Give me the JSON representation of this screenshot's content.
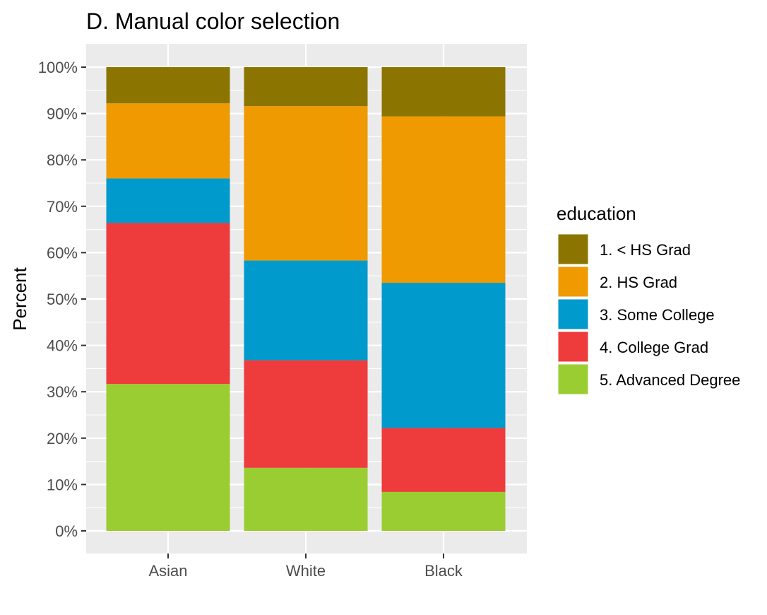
{
  "chart_data": {
    "type": "bar",
    "stacked": true,
    "title": "D. Manual color selection",
    "xlabel": "",
    "ylabel": "Percent",
    "categories": [
      "Asian",
      "White",
      "Black"
    ],
    "ylim": [
      0,
      100
    ],
    "y_ticks": [
      0,
      10,
      20,
      30,
      40,
      50,
      60,
      70,
      80,
      90,
      100
    ],
    "y_tick_labels": [
      "0%",
      "10%",
      "20%",
      "30%",
      "40%",
      "50%",
      "60%",
      "70%",
      "80%",
      "90%",
      "100%"
    ],
    "grid": true,
    "legend": {
      "title": "education",
      "position": "right"
    },
    "series": [
      {
        "name": "1. < HS Grad",
        "color": "#8B7500",
        "values": [
          7.8,
          8.4,
          10.6
        ]
      },
      {
        "name": "2. HS Grad",
        "color": "#EE9A00",
        "values": [
          16.2,
          33.3,
          35.9
        ]
      },
      {
        "name": "3. Some College",
        "color": "#009ACD",
        "values": [
          9.6,
          21.5,
          31.3
        ]
      },
      {
        "name": "4. College Grad",
        "color": "#EE3B3B",
        "values": [
          34.7,
          23.2,
          13.8
        ]
      },
      {
        "name": "5. Advanced Degree",
        "color": "#9ACD32",
        "values": [
          31.7,
          13.6,
          8.4
        ]
      }
    ],
    "stack_order_top_to_bottom": [
      "1. < HS Grad",
      "2. HS Grad",
      "3. Some College",
      "4. College Grad",
      "5. Advanced Degree"
    ],
    "panel_background": "#EBEBEB",
    "gridline_color": "#FFFFFF"
  }
}
